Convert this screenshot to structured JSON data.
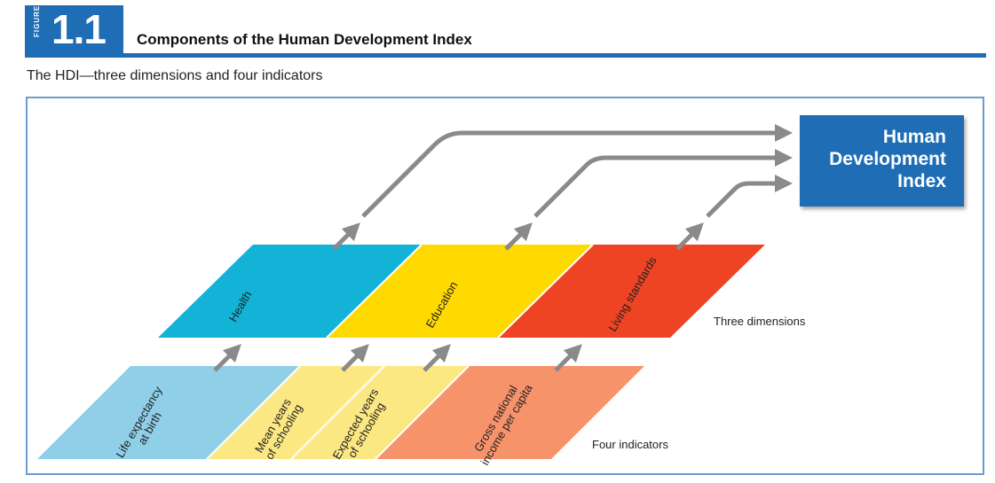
{
  "figure": {
    "badge_word": "FIGURE",
    "number": "1.1",
    "title": "Components of the Human Development Index",
    "subtitle": "The HDI—three dimensions and four indicators"
  },
  "hdi": {
    "line1": "Human",
    "line2": "Development",
    "line3": "Index",
    "color": "#1f6db5"
  },
  "dimensions": {
    "caption": "Three dimensions",
    "items": [
      {
        "label": "Health",
        "color": "#13b3d7"
      },
      {
        "label": "Education",
        "color": "#ffda00"
      },
      {
        "label": "Living standards",
        "color": "#ef4423"
      }
    ]
  },
  "indicators": {
    "caption": "Four indicators",
    "items": [
      {
        "line1": "Life expectancy",
        "line2": "at birth",
        "color": "#8fcfe8"
      },
      {
        "line1": "Mean years",
        "line2": "of schooling",
        "color": "#fce883"
      },
      {
        "line1": "Expected years",
        "line2": "of schooling",
        "color": "#fce883"
      },
      {
        "line1": "Gross national",
        "line2": "income per capita",
        "color": "#f7936a"
      }
    ]
  },
  "arrow_color": "#8a8a8a"
}
